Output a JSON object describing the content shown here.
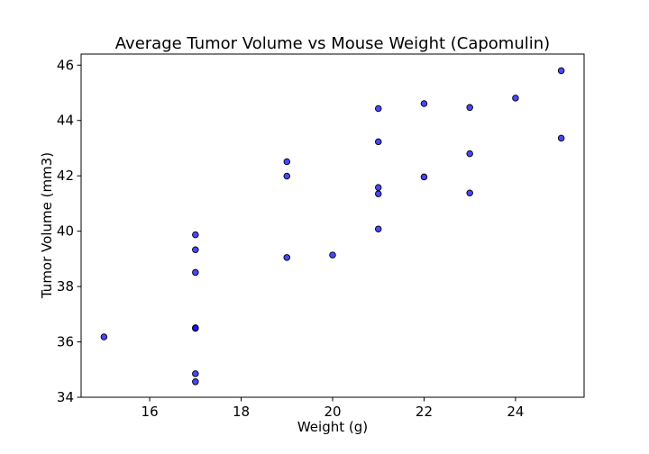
{
  "chart_data": {
    "type": "scatter",
    "title": "Average Tumor Volume vs Mouse Weight (Capomulin)",
    "xlabel": "Weight (g)",
    "ylabel": "Tumor Volume (mm3)",
    "xlim": [
      14.5,
      25.5
    ],
    "ylim": [
      34,
      46.4
    ],
    "xticks": [
      16,
      18,
      20,
      22,
      24
    ],
    "yticks": [
      34,
      36,
      38,
      40,
      42,
      44,
      46
    ],
    "grid": false,
    "marker_color": "#0000ff",
    "marker_edge_color": "#000000",
    "points": [
      {
        "x": 15,
        "y": 36.18
      },
      {
        "x": 17,
        "y": 39.87
      },
      {
        "x": 17,
        "y": 39.33
      },
      {
        "x": 17,
        "y": 38.51
      },
      {
        "x": 17,
        "y": 36.51
      },
      {
        "x": 17,
        "y": 36.49
      },
      {
        "x": 17,
        "y": 34.85
      },
      {
        "x": 17,
        "y": 34.56
      },
      {
        "x": 19,
        "y": 42.51
      },
      {
        "x": 19,
        "y": 41.99
      },
      {
        "x": 19,
        "y": 39.05
      },
      {
        "x": 20,
        "y": 39.14
      },
      {
        "x": 21,
        "y": 44.43
      },
      {
        "x": 21,
        "y": 43.23
      },
      {
        "x": 21,
        "y": 41.58
      },
      {
        "x": 21,
        "y": 41.35
      },
      {
        "x": 21,
        "y": 40.08
      },
      {
        "x": 22,
        "y": 44.61
      },
      {
        "x": 22,
        "y": 41.96
      },
      {
        "x": 23,
        "y": 44.47
      },
      {
        "x": 23,
        "y": 42.8
      },
      {
        "x": 23,
        "y": 41.38
      },
      {
        "x": 24,
        "y": 44.81
      },
      {
        "x": 25,
        "y": 45.8
      },
      {
        "x": 25,
        "y": 43.36
      }
    ]
  }
}
